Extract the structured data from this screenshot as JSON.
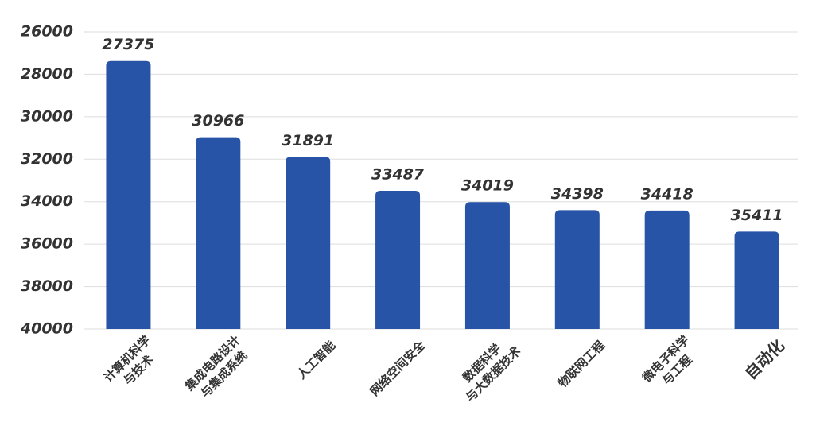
{
  "chart_data": {
    "type": "bar",
    "categories": [
      "计算机科学\n与技术",
      "集成电路设计\n与集成系统",
      "人工智能",
      "网络空间安全",
      "数据科学\n与大数据技术",
      "物联网工程",
      "微电子科学\n与工程",
      "自动化"
    ],
    "values": [
      27375,
      30966,
      31891,
      33487,
      34019,
      34398,
      34418,
      35411
    ],
    "color": "#2754a6",
    "ylim": [
      40000,
      26000
    ],
    "yticks": [
      26000,
      28000,
      30000,
      32000,
      34000,
      36000,
      38000,
      40000
    ],
    "grid": true
  }
}
